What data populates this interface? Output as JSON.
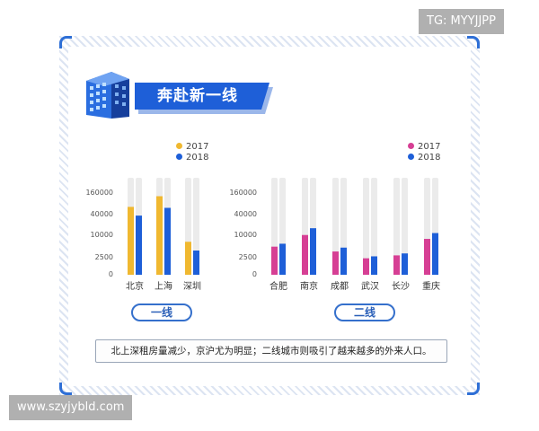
{
  "watermarks": {
    "top": "TG: MYYJJPP",
    "bottom": "www.szyjybld.com"
  },
  "header": {
    "title": "奔赴新一线"
  },
  "colors": {
    "series_2017_tier1": "#f0b830",
    "series_2017_tier2": "#d63f94",
    "series_2018": "#1e5fd8",
    "track": "#ebebeb",
    "accent": "#2e6fd6"
  },
  "chart_data": [
    {
      "type": "bar",
      "group_label": "一线",
      "categories": [
        "北京",
        "上海",
        "深圳"
      ],
      "yticks": [
        "160000",
        "40000",
        "10000",
        "2500",
        "0"
      ],
      "legend": [
        "2017",
        "2018"
      ],
      "series": [
        {
          "name": "2017",
          "values": [
            0.7,
            0.81,
            0.34
          ]
        },
        {
          "name": "2018",
          "values": [
            0.61,
            0.69,
            0.25
          ]
        }
      ]
    },
    {
      "type": "bar",
      "group_label": "二线",
      "categories": [
        "合肥",
        "南京",
        "成都",
        "武汉",
        "长沙",
        "重庆"
      ],
      "yticks": [
        "160000",
        "40000",
        "10000",
        "2500",
        "0"
      ],
      "legend": [
        "2017",
        "2018"
      ],
      "series": [
        {
          "name": "2017",
          "values": [
            0.29,
            0.41,
            0.24,
            0.17,
            0.2,
            0.37
          ]
        },
        {
          "name": "2018",
          "values": [
            0.32,
            0.48,
            0.28,
            0.19,
            0.22,
            0.43
          ]
        }
      ]
    }
  ],
  "footer": {
    "note": "北上深租房量减少，京沪尤为明显；二线城市则吸引了越来越多的外来人口。"
  }
}
